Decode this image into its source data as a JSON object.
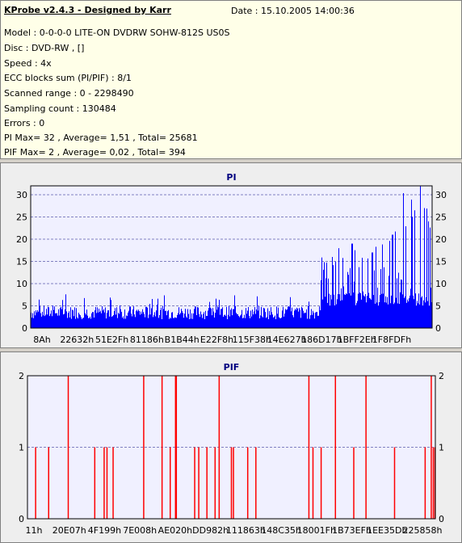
{
  "header": {
    "title": "KProbe v2.4.3 - Designed by Karr",
    "date": "Date : 15.10.2005 14:00:36"
  },
  "info_lines": [
    "Model : 0-0-0-0 LITE-ON DVDRW SOHW-812S  US0S",
    "Disc : DVD-RW ,  []",
    "Speed : 4x",
    "ECC blocks sum (PI/PIF) : 8/1",
    "Scanned range : 0 - 2298490",
    "Sampling count : 130484",
    "Errors : 0",
    "PI Max= 32 , Average= 1,51 , Total= 25681",
    "PIF Max= 2 , Average= 0,02 , Total= 394"
  ],
  "colors": {
    "pi": "#0000ff",
    "pif": "#ff0000",
    "plot_bg": "#f0f0ff",
    "grid": "#8080c0",
    "chart_title": "#000080"
  },
  "chart_data": [
    {
      "type": "bar",
      "title": "PI",
      "ylim": [
        0,
        32
      ],
      "yticks": [
        0,
        5,
        10,
        15,
        20,
        25,
        30
      ],
      "xtick_labels": [
        "8Ah",
        "22632h",
        "51E2Fh",
        "81186h",
        "B1B44h",
        "E22F8h",
        "115F38h",
        "14E627h",
        "186D17h",
        "1BFF2Eh",
        "1F8FDFh"
      ],
      "baseline_range_fraction": [
        0.0,
        0.72
      ],
      "baseline_level": [
        2,
        5
      ],
      "notable_values": [
        {
          "position": 0.72,
          "value": 4
        },
        {
          "position": 0.75,
          "value": 16
        },
        {
          "position": 0.8,
          "value": 19
        },
        {
          "position": 0.85,
          "value": 17
        },
        {
          "position": 0.9,
          "value": 21
        },
        {
          "position": 0.95,
          "value": 25
        },
        {
          "position": 0.97,
          "value": 32
        },
        {
          "position": 0.98,
          "value": 27
        },
        {
          "position": 0.99,
          "value": 24
        }
      ]
    },
    {
      "type": "bar",
      "title": "PIF",
      "ylim": [
        0,
        2
      ],
      "yticks": [
        0,
        1,
        2
      ],
      "xtick_labels": [
        "11h",
        "20E07h",
        "4F199h",
        "7E008h",
        "AE020h",
        "DD982h",
        "111863h",
        "148C35h",
        "18001Fh",
        "1B73EFh",
        "1EE35Dh",
        "225858h"
      ],
      "spikes": [
        {
          "position": 0.02,
          "value": 1
        },
        {
          "position": 0.052,
          "value": 1
        },
        {
          "position": 0.1,
          "value": 2
        },
        {
          "position": 0.165,
          "value": 1
        },
        {
          "position": 0.188,
          "value": 1
        },
        {
          "position": 0.195,
          "value": 1
        },
        {
          "position": 0.21,
          "value": 1
        },
        {
          "position": 0.285,
          "value": 2
        },
        {
          "position": 0.33,
          "value": 2
        },
        {
          "position": 0.35,
          "value": 1
        },
        {
          "position": 0.363,
          "value": 2
        },
        {
          "position": 0.365,
          "value": 2
        },
        {
          "position": 0.41,
          "value": 1
        },
        {
          "position": 0.42,
          "value": 1
        },
        {
          "position": 0.44,
          "value": 1
        },
        {
          "position": 0.46,
          "value": 1
        },
        {
          "position": 0.47,
          "value": 2
        },
        {
          "position": 0.5,
          "value": 1
        },
        {
          "position": 0.505,
          "value": 1
        },
        {
          "position": 0.54,
          "value": 1
        },
        {
          "position": 0.56,
          "value": 1
        },
        {
          "position": 0.69,
          "value": 2
        },
        {
          "position": 0.7,
          "value": 1
        },
        {
          "position": 0.72,
          "value": 1
        },
        {
          "position": 0.755,
          "value": 2
        },
        {
          "position": 0.8,
          "value": 1
        },
        {
          "position": 0.83,
          "value": 2
        },
        {
          "position": 0.9,
          "value": 1
        },
        {
          "position": 0.975,
          "value": 1
        },
        {
          "position": 0.99,
          "value": 2
        },
        {
          "position": 0.995,
          "value": 1
        },
        {
          "position": 0.999,
          "value": 1
        }
      ]
    }
  ]
}
